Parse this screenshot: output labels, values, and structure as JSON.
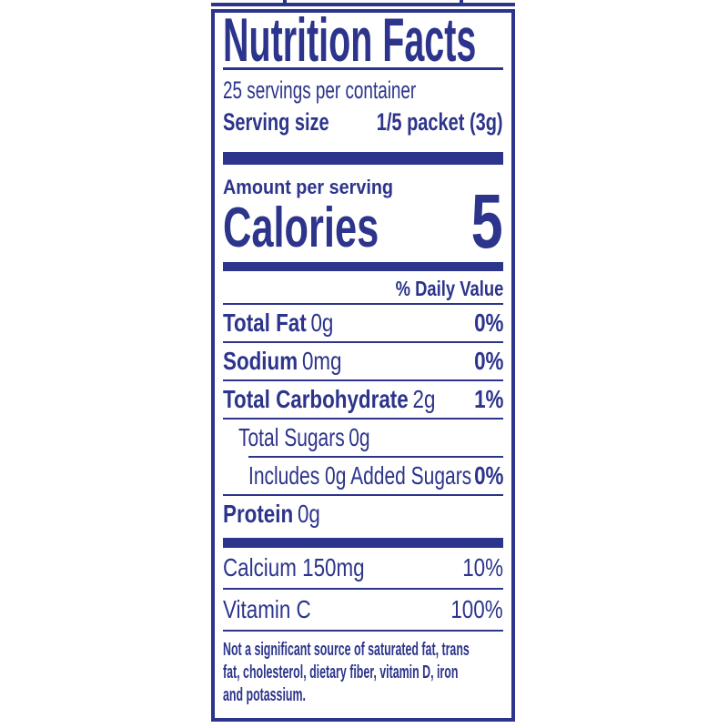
{
  "colors": {
    "label_blue": "#2c348b",
    "background": "#ffffff"
  },
  "label": {
    "title": "Nutrition Facts",
    "servings_per_container": "25 servings per container",
    "serving_size": {
      "label": "Serving size",
      "value": "1/5 packet (3g)"
    },
    "amount_per_serving": "Amount per serving",
    "calories": {
      "label": "Calories",
      "value": "5"
    },
    "daily_value_header": "% Daily Value",
    "rows": [
      {
        "name": "Total Fat",
        "amount": "0g",
        "dv": "0%"
      },
      {
        "name": "Sodium",
        "amount": "0mg",
        "dv": "0%"
      },
      {
        "name": "Total Carbohydrate",
        "amount": "2g",
        "dv": "1%"
      },
      {
        "name": "Total Sugars",
        "amount": "0g",
        "dv": ""
      },
      {
        "name": "Includes 0g Added Sugars",
        "amount": "",
        "dv": "0%"
      },
      {
        "name": "Protein",
        "amount": "0g",
        "dv": ""
      }
    ],
    "micronutrients": [
      {
        "name": "Calcium 150mg",
        "dv": "10%"
      },
      {
        "name": "Vitamin C",
        "dv": "100%"
      }
    ],
    "footnote_lines": [
      "Not a significant source of saturated fat, trans",
      "fat, cholesterol, dietary fiber, vitamin D, iron",
      "and potassium."
    ]
  }
}
